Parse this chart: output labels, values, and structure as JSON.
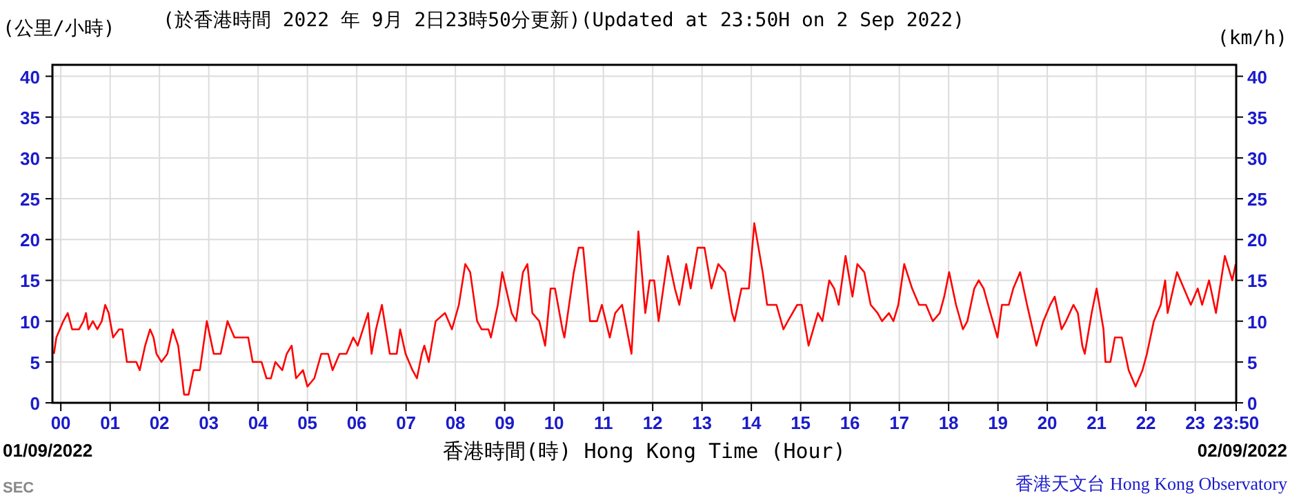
{
  "chart_data": {
    "type": "line",
    "title": "(於香港時間 2022 年 9月 2日23時50分更新)(Updated at 23:50H on 2 Sep 2022)",
    "ylabel": "(公里/小時)",
    "y2label": "(km/h)",
    "xlabel": "香港時間(時) Hong Kong Time (Hour)",
    "annotations": [
      "01/09/2022",
      "02/09/2022",
      "SEC",
      "香港天文台 Hong Kong Observatory"
    ],
    "xlim": [
      -0.17,
      23.83
    ],
    "ylim": [
      0,
      41.4
    ],
    "y2lim": [
      0,
      41.4
    ],
    "xticks": [
      {
        "value": 0,
        "label": "00"
      },
      {
        "value": 1,
        "label": "01"
      },
      {
        "value": 2,
        "label": "02"
      },
      {
        "value": 3,
        "label": "03"
      },
      {
        "value": 4,
        "label": "04"
      },
      {
        "value": 5,
        "label": "05"
      },
      {
        "value": 6,
        "label": "06"
      },
      {
        "value": 7,
        "label": "07"
      },
      {
        "value": 8,
        "label": "08"
      },
      {
        "value": 9,
        "label": "09"
      },
      {
        "value": 10,
        "label": "10"
      },
      {
        "value": 11,
        "label": "11"
      },
      {
        "value": 12,
        "label": "12"
      },
      {
        "value": 13,
        "label": "13"
      },
      {
        "value": 14,
        "label": "14"
      },
      {
        "value": 15,
        "label": "15"
      },
      {
        "value": 16,
        "label": "16"
      },
      {
        "value": 17,
        "label": "17"
      },
      {
        "value": 18,
        "label": "18"
      },
      {
        "value": 19,
        "label": "19"
      },
      {
        "value": 20,
        "label": "20"
      },
      {
        "value": 21,
        "label": "21"
      },
      {
        "value": 22,
        "label": "22"
      },
      {
        "value": 23,
        "label": "23"
      },
      {
        "value": 23.83,
        "label": "23:50"
      }
    ],
    "yticks": [
      0,
      5,
      10,
      15,
      20,
      25,
      30,
      35,
      40
    ],
    "y2ticks": [
      0,
      5,
      10,
      15,
      20,
      25,
      30,
      35,
      40
    ],
    "grid": true,
    "series": [
      {
        "color": "#ff0000",
        "x": [
          -0.14,
          -0.09,
          0.05,
          0.14,
          0.23,
          0.37,
          0.46,
          0.51,
          0.56,
          0.65,
          0.74,
          0.83,
          0.9,
          0.97,
          1.06,
          1.18,
          1.25,
          1.34,
          1.53,
          1.6,
          1.71,
          1.81,
          1.88,
          1.94,
          2.04,
          2.16,
          2.27,
          2.38,
          2.5,
          2.59,
          2.69,
          2.82,
          2.96,
          3.1,
          3.24,
          3.38,
          3.52,
          3.66,
          3.8,
          3.89,
          4.07,
          4.17,
          4.26,
          4.35,
          4.49,
          4.58,
          4.68,
          4.77,
          4.91,
          5.0,
          5.14,
          5.28,
          5.42,
          5.51,
          5.65,
          5.79,
          5.93,
          6.02,
          6.23,
          6.3,
          6.39,
          6.51,
          6.67,
          6.81,
          6.88,
          6.99,
          7.13,
          7.22,
          7.32,
          7.37,
          7.46,
          7.6,
          7.79,
          7.93,
          8.07,
          8.2,
          8.3,
          8.44,
          8.53,
          8.67,
          8.72,
          8.86,
          8.95,
          9.14,
          9.23,
          9.37,
          9.46,
          9.56,
          9.7,
          9.82,
          9.93,
          10.02,
          10.17,
          10.21,
          10.4,
          10.5,
          10.59,
          10.73,
          10.87,
          10.97,
          11.13,
          11.24,
          11.38,
          11.57,
          11.71,
          11.85,
          11.94,
          12.03,
          12.12,
          12.31,
          12.45,
          12.54,
          12.68,
          12.77,
          12.91,
          13.05,
          13.19,
          13.33,
          13.47,
          13.61,
          13.66,
          13.8,
          13.95,
          14.06,
          14.23,
          14.32,
          14.51,
          14.65,
          14.74,
          14.93,
          15.02,
          15.16,
          15.35,
          15.44,
          15.58,
          15.68,
          15.77,
          15.91,
          16.05,
          16.15,
          16.29,
          16.42,
          16.56,
          16.65,
          16.79,
          16.88,
          16.98,
          17.1,
          17.26,
          17.4,
          17.54,
          17.68,
          17.82,
          17.91,
          18.01,
          18.15,
          18.29,
          18.38,
          18.52,
          18.61,
          18.71,
          18.8,
          18.99,
          19.08,
          19.22,
          19.31,
          19.45,
          19.59,
          19.78,
          19.92,
          20.06,
          20.15,
          20.29,
          20.38,
          20.53,
          20.62,
          20.71,
          20.76,
          20.9,
          21.0,
          21.14,
          21.18,
          21.28,
          21.37,
          21.51,
          21.65,
          21.79,
          21.93,
          22.02,
          22.16,
          22.3,
          22.39,
          22.44,
          22.63,
          22.77,
          22.91,
          23.05,
          23.14,
          23.28,
          23.42,
          23.6,
          23.75,
          23.82
        ],
        "values": [
          6,
          8,
          10,
          11,
          9,
          9,
          10,
          11,
          9,
          10,
          9,
          10,
          12,
          11,
          8,
          9,
          9,
          5,
          5,
          4,
          7,
          9,
          8,
          6,
          5,
          6,
          9,
          7,
          1,
          1,
          4,
          4,
          10,
          6,
          6,
          10,
          8,
          8,
          8,
          5,
          5,
          3,
          3,
          5,
          4,
          6,
          7,
          3,
          4,
          2,
          3,
          6,
          6,
          4,
          6,
          6,
          8,
          7,
          11,
          6,
          9,
          12,
          6,
          6,
          9,
          6,
          4,
          3,
          6,
          7,
          5,
          10,
          11,
          9,
          12,
          17,
          16,
          10,
          9,
          9,
          8,
          12,
          16,
          11,
          10,
          16,
          17,
          11,
          10,
          7,
          14,
          14,
          9,
          8,
          16,
          19,
          19,
          10,
          10,
          12,
          8,
          11,
          12,
          6,
          21,
          11,
          15,
          15,
          10,
          18,
          14,
          12,
          17,
          14,
          19,
          19,
          14,
          17,
          16,
          11,
          10,
          14,
          14,
          22,
          16,
          12,
          12,
          9,
          10,
          12,
          12,
          7,
          11,
          10,
          15,
          14,
          12,
          18,
          13,
          17,
          16,
          12,
          11,
          10,
          11,
          10,
          12,
          17,
          14,
          12,
          12,
          10,
          11,
          13,
          16,
          12,
          9,
          10,
          14,
          15,
          14,
          12,
          8,
          12,
          12,
          14,
          16,
          12,
          7,
          10,
          12,
          13,
          9,
          10,
          12,
          11,
          7,
          6,
          11,
          14,
          9,
          5,
          5,
          8,
          8,
          4,
          2,
          4,
          6,
          10,
          12,
          15,
          11,
          16,
          14,
          12,
          14,
          12,
          15,
          11,
          18,
          15,
          17
        ]
      }
    ]
  }
}
